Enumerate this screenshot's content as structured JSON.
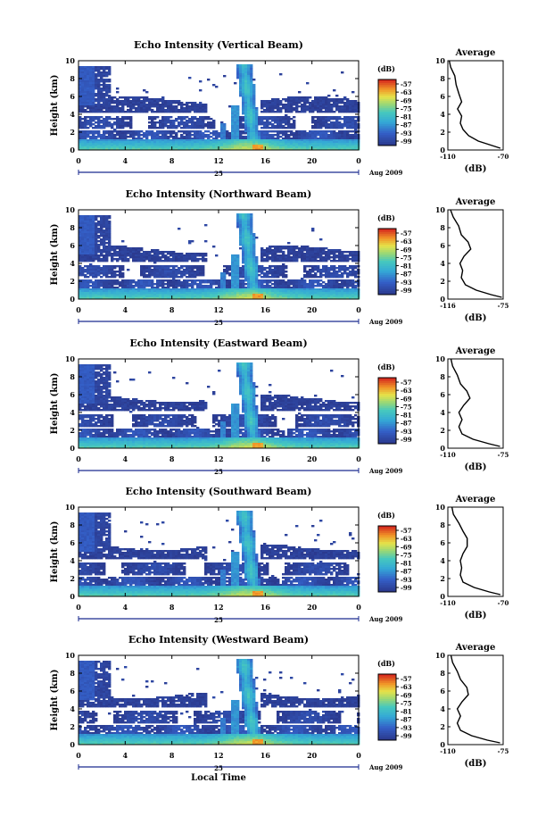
{
  "figure": {
    "xlabel": "Local Time",
    "date_label": "Aug 2009",
    "day_label": "25",
    "colorbar_unit": "(dB)",
    "colorbar_ticks": [
      "-57",
      "-63",
      "-69",
      "-75",
      "-81",
      "-87",
      "-93",
      "-99"
    ],
    "colors": {
      "background": "#ffffff",
      "echo_low": "#2b3a8f",
      "echo_mid": "#34a9d6",
      "echo_high": "#e5e34a",
      "echo_peak": "#d62a1e"
    }
  },
  "chart_data": [
    {
      "type": "heatmap",
      "title": "Echo Intensity (Vertical Beam)",
      "ylabel": "Height (km)",
      "xlabel": "",
      "x_ticks": [
        "0",
        "4",
        "8",
        "12",
        "16",
        "20",
        "0"
      ],
      "y_ticks": [
        "0",
        "2",
        "4",
        "6",
        "8",
        "10"
      ],
      "xlim": [
        0,
        24
      ],
      "ylim": [
        0,
        10
      ],
      "colorbar_range": [
        -99,
        -57
      ],
      "average_profile": {
        "title": "Average",
        "xlabel": "(dB)",
        "x_ticks": [
          "-110",
          "-70"
        ],
        "xlim": [
          -110,
          -70
        ],
        "y_ticks": [
          "0",
          "2",
          "4",
          "6",
          "8",
          "10"
        ],
        "points": [
          [
            -72,
            0.2
          ],
          [
            -78,
            0.5
          ],
          [
            -88,
            1.0
          ],
          [
            -95,
            1.6
          ],
          [
            -99,
            2.3
          ],
          [
            -101,
            3.0
          ],
          [
            -100,
            3.8
          ],
          [
            -103,
            4.6
          ],
          [
            -100,
            5.4
          ],
          [
            -102,
            6.3
          ],
          [
            -104,
            7.3
          ],
          [
            -105,
            8.3
          ],
          [
            -108,
            9.3
          ],
          [
            -109,
            10.0
          ]
        ]
      }
    },
    {
      "type": "heatmap",
      "title": "Echo Intensity (Northward Beam)",
      "ylabel": "Height (km)",
      "xlabel": "",
      "x_ticks": [
        "0",
        "4",
        "8",
        "12",
        "16",
        "20",
        "0"
      ],
      "y_ticks": [
        "0",
        "2",
        "4",
        "6",
        "8",
        "10"
      ],
      "xlim": [
        0,
        24
      ],
      "ylim": [
        0,
        10
      ],
      "colorbar_range": [
        -99,
        -57
      ],
      "average_profile": {
        "title": "Average",
        "xlabel": "(dB)",
        "x_ticks": [
          "-116",
          "-75"
        ],
        "xlim": [
          -116,
          -75
        ],
        "y_ticks": [
          "0",
          "2",
          "4",
          "6",
          "8",
          "10"
        ],
        "points": [
          [
            -76,
            0.2
          ],
          [
            -84,
            0.5
          ],
          [
            -95,
            1.0
          ],
          [
            -103,
            1.6
          ],
          [
            -106,
            2.4
          ],
          [
            -105,
            3.2
          ],
          [
            -107,
            4.0
          ],
          [
            -104,
            4.8
          ],
          [
            -99,
            5.6
          ],
          [
            -101,
            6.4
          ],
          [
            -106,
            7.2
          ],
          [
            -108,
            8.2
          ],
          [
            -112,
            9.2
          ],
          [
            -114,
            10.0
          ]
        ]
      }
    },
    {
      "type": "heatmap",
      "title": "Echo Intensity (Eastward Beam)",
      "ylabel": "Height (km)",
      "xlabel": "",
      "x_ticks": [
        "0",
        "4",
        "8",
        "12",
        "16",
        "20",
        "0"
      ],
      "y_ticks": [
        "0",
        "2",
        "4",
        "6",
        "8",
        "10"
      ],
      "xlim": [
        0,
        24
      ],
      "ylim": [
        0,
        10
      ],
      "colorbar_range": [
        -99,
        -57
      ],
      "average_profile": {
        "title": "Average",
        "xlabel": "(dB)",
        "x_ticks": [
          "-110",
          "-75"
        ],
        "xlim": [
          -110,
          -75
        ],
        "y_ticks": [
          "0",
          "2",
          "4",
          "6",
          "8",
          "10"
        ],
        "points": [
          [
            -77,
            0.2
          ],
          [
            -84,
            0.5
          ],
          [
            -94,
            1.0
          ],
          [
            -101,
            1.6
          ],
          [
            -103,
            2.4
          ],
          [
            -101,
            3.2
          ],
          [
            -103,
            4.0
          ],
          [
            -100,
            4.8
          ],
          [
            -96,
            5.6
          ],
          [
            -98,
            6.4
          ],
          [
            -102,
            7.2
          ],
          [
            -104,
            8.2
          ],
          [
            -107,
            9.2
          ],
          [
            -108,
            10.0
          ]
        ]
      }
    },
    {
      "type": "heatmap",
      "title": "Echo Intensity (Southward Beam)",
      "ylabel": "Height (km)",
      "xlabel": "",
      "x_ticks": [
        "0",
        "4",
        "8",
        "12",
        "16",
        "20",
        "0"
      ],
      "y_ticks": [
        "0",
        "2",
        "4",
        "6",
        "8",
        "10"
      ],
      "xlim": [
        0,
        24
      ],
      "ylim": [
        0,
        10
      ],
      "colorbar_range": [
        -99,
        -57
      ],
      "average_profile": {
        "title": "Average",
        "xlabel": "(dB)",
        "x_ticks": [
          "-110",
          "-70"
        ],
        "xlim": [
          -110,
          -70
        ],
        "y_ticks": [
          "0",
          "2",
          "4",
          "6",
          "8",
          "10"
        ],
        "points": [
          [
            -72,
            0.2
          ],
          [
            -80,
            0.5
          ],
          [
            -91,
            1.0
          ],
          [
            -99,
            1.6
          ],
          [
            -101,
            2.4
          ],
          [
            -100,
            3.2
          ],
          [
            -101,
            4.0
          ],
          [
            -99,
            4.8
          ],
          [
            -96,
            5.6
          ],
          [
            -96,
            6.5
          ],
          [
            -99,
            7.3
          ],
          [
            -102,
            8.2
          ],
          [
            -106,
            9.2
          ],
          [
            -107,
            10.0
          ]
        ]
      }
    },
    {
      "type": "heatmap",
      "title": "Echo Intensity (Westward Beam)",
      "ylabel": "Height (km)",
      "xlabel": "Local Time",
      "x_ticks": [
        "0",
        "4",
        "8",
        "12",
        "16",
        "20",
        "0"
      ],
      "y_ticks": [
        "0",
        "2",
        "4",
        "6",
        "8",
        "10"
      ],
      "xlim": [
        0,
        24
      ],
      "ylim": [
        0,
        10
      ],
      "colorbar_range": [
        -99,
        -57
      ],
      "average_profile": {
        "title": "Average",
        "xlabel": "(dB)",
        "x_ticks": [
          "-110",
          "-75"
        ],
        "xlim": [
          -110,
          -75
        ],
        "y_ticks": [
          "0",
          "2",
          "4",
          "6",
          "8",
          "10"
        ],
        "points": [
          [
            -77,
            0.2
          ],
          [
            -85,
            0.5
          ],
          [
            -95,
            1.0
          ],
          [
            -102,
            1.6
          ],
          [
            -104,
            2.4
          ],
          [
            -102,
            3.2
          ],
          [
            -104,
            4.0
          ],
          [
            -101,
            4.8
          ],
          [
            -97,
            5.6
          ],
          [
            -98,
            6.4
          ],
          [
            -102,
            7.3
          ],
          [
            -104,
            8.2
          ],
          [
            -107,
            9.2
          ],
          [
            -108,
            10.0
          ]
        ]
      }
    }
  ]
}
